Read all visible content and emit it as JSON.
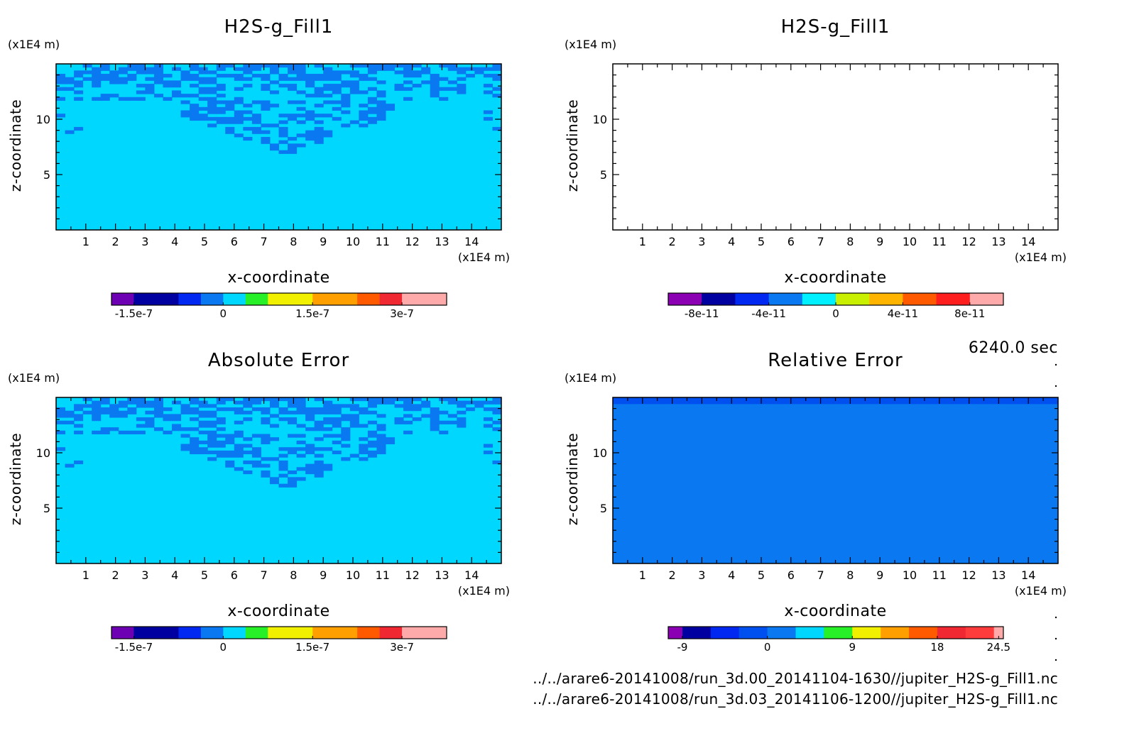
{
  "footer": {
    "time": "6240.0 sec",
    "file1": "../../arare6-20141008/run_3d.00_20141104-1630//jupiter_H2S-g_Fill1.nc",
    "file2": "../../arare6-20141008/run_3d.03_20141106-1200//jupiter_H2S-g_Fill1.nc"
  },
  "chart_data": [
    {
      "type": "heatmap",
      "title": "H2S-g_Fill1",
      "xlabel": "x-coordinate",
      "ylabel": "z-coordinate",
      "x_unit": "(x1E4 m)",
      "y_unit": "(x1E4 m)",
      "xlim": [
        0,
        15
      ],
      "ylim": [
        0,
        15
      ],
      "x_ticks": [
        "1",
        "2",
        "3",
        "4",
        "5",
        "6",
        "7",
        "8",
        "9",
        "10",
        "11",
        "12",
        "13",
        "14"
      ],
      "y_ticks": [
        "5",
        "10"
      ],
      "field": "pattern",
      "background_color": "#00d7ff",
      "pattern_color": "#0a78f0",
      "colorbar": {
        "colors": [
          "#6e00b4",
          "#0000a0",
          "#0028f0",
          "#0a78f0",
          "#00d7ff",
          "#28f028",
          "#f0f000",
          "#ffa000",
          "#ff5a00",
          "#f02832",
          "#ffaaaa"
        ],
        "bounds": [
          -1.875e-07,
          -1.5e-07,
          -7.5e-08,
          -3.75e-08,
          0,
          3.75e-08,
          7.5e-08,
          1.5e-07,
          2.25e-07,
          2.625e-07,
          3e-07,
          3.75e-07
        ],
        "tick_values": [
          -1.5e-07,
          0,
          1.5e-07,
          3e-07
        ],
        "tick_labels": [
          "-1.5e-7",
          "0",
          "1.5e-7",
          "3e-7"
        ]
      }
    },
    {
      "type": "heatmap",
      "title": "H2S-g_Fill1",
      "xlabel": "x-coordinate",
      "ylabel": "z-coordinate",
      "x_unit": "(x1E4 m)",
      "y_unit": "(x1E4 m)",
      "xlim": [
        0,
        15
      ],
      "ylim": [
        0,
        15
      ],
      "x_ticks": [
        "1",
        "2",
        "3",
        "4",
        "5",
        "6",
        "7",
        "8",
        "9",
        "10",
        "11",
        "12",
        "13",
        "14"
      ],
      "y_ticks": [
        "5",
        "10"
      ],
      "field": "empty",
      "colorbar": {
        "colors": [
          "#8c00b4",
          "#0000a0",
          "#0028f0",
          "#0a78f0",
          "#00f0ff",
          "#c8f000",
          "#ffb400",
          "#ff5a00",
          "#ff1e1e",
          "#ffaaaa"
        ],
        "bounds": [
          -1e-10,
          -8e-11,
          -6e-11,
          -4e-11,
          -2e-11,
          0,
          2e-11,
          4e-11,
          6e-11,
          8e-11,
          1e-10
        ],
        "tick_values": [
          -8e-11,
          -4e-11,
          0,
          4e-11,
          8e-11
        ],
        "tick_labels": [
          "-8e-11",
          "-4e-11",
          "0",
          "4e-11",
          "8e-11"
        ]
      }
    },
    {
      "type": "heatmap",
      "title": "Absolute Error",
      "xlabel": "x-coordinate",
      "ylabel": "z-coordinate",
      "x_unit": "(x1E4 m)",
      "y_unit": "(x1E4 m)",
      "xlim": [
        0,
        15
      ],
      "ylim": [
        0,
        15
      ],
      "x_ticks": [
        "1",
        "2",
        "3",
        "4",
        "5",
        "6",
        "7",
        "8",
        "9",
        "10",
        "11",
        "12",
        "13",
        "14"
      ],
      "y_ticks": [
        "5",
        "10"
      ],
      "field": "pattern",
      "background_color": "#00d7ff",
      "pattern_color": "#0a78f0",
      "colorbar": {
        "colors": [
          "#6e00b4",
          "#0000a0",
          "#0028f0",
          "#0a78f0",
          "#00d7ff",
          "#28f028",
          "#f0f000",
          "#ffa000",
          "#ff5a00",
          "#f02832",
          "#ffaaaa"
        ],
        "bounds": [
          -1.875e-07,
          -1.5e-07,
          -7.5e-08,
          -3.75e-08,
          0,
          3.75e-08,
          7.5e-08,
          1.5e-07,
          2.25e-07,
          2.625e-07,
          3e-07,
          3.75e-07
        ],
        "tick_values": [
          -1.5e-07,
          0,
          1.5e-07,
          3e-07
        ],
        "tick_labels": [
          "-1.5e-7",
          "0",
          "1.5e-7",
          "3e-7"
        ]
      }
    },
    {
      "type": "heatmap",
      "title": "Relative Error",
      "xlabel": "x-coordinate",
      "ylabel": "z-coordinate",
      "x_unit": "(x1E4 m)",
      "y_unit": "(x1E4 m)",
      "xlim": [
        0,
        15
      ],
      "ylim": [
        0,
        15
      ],
      "x_ticks": [
        "1",
        "2",
        "3",
        "4",
        "5",
        "6",
        "7",
        "8",
        "9",
        "10",
        "11",
        "12",
        "13",
        "14"
      ],
      "y_ticks": [
        "5",
        "10"
      ],
      "field": "pattern_top",
      "background_color": "#0a78f0",
      "pattern_color": "#0a78f0",
      "band_color": "#0050f0",
      "colorbar": {
        "colors": [
          "#8c00b4",
          "#0000a0",
          "#0028f0",
          "#0050f0",
          "#0a78f0",
          "#00d7ff",
          "#28f028",
          "#f0f000",
          "#ffa000",
          "#ff5a00",
          "#f02832",
          "#ff3c3c",
          "#ffaaaa"
        ],
        "bounds": [
          -10.5,
          -9,
          -6,
          -3,
          0,
          3,
          6,
          9,
          12,
          15,
          18,
          21,
          24,
          25
        ],
        "tick_values": [
          -9,
          0,
          9,
          18,
          24.5
        ],
        "tick_labels": [
          "-9",
          "0",
          "9",
          "18",
          "24.5"
        ]
      }
    }
  ]
}
